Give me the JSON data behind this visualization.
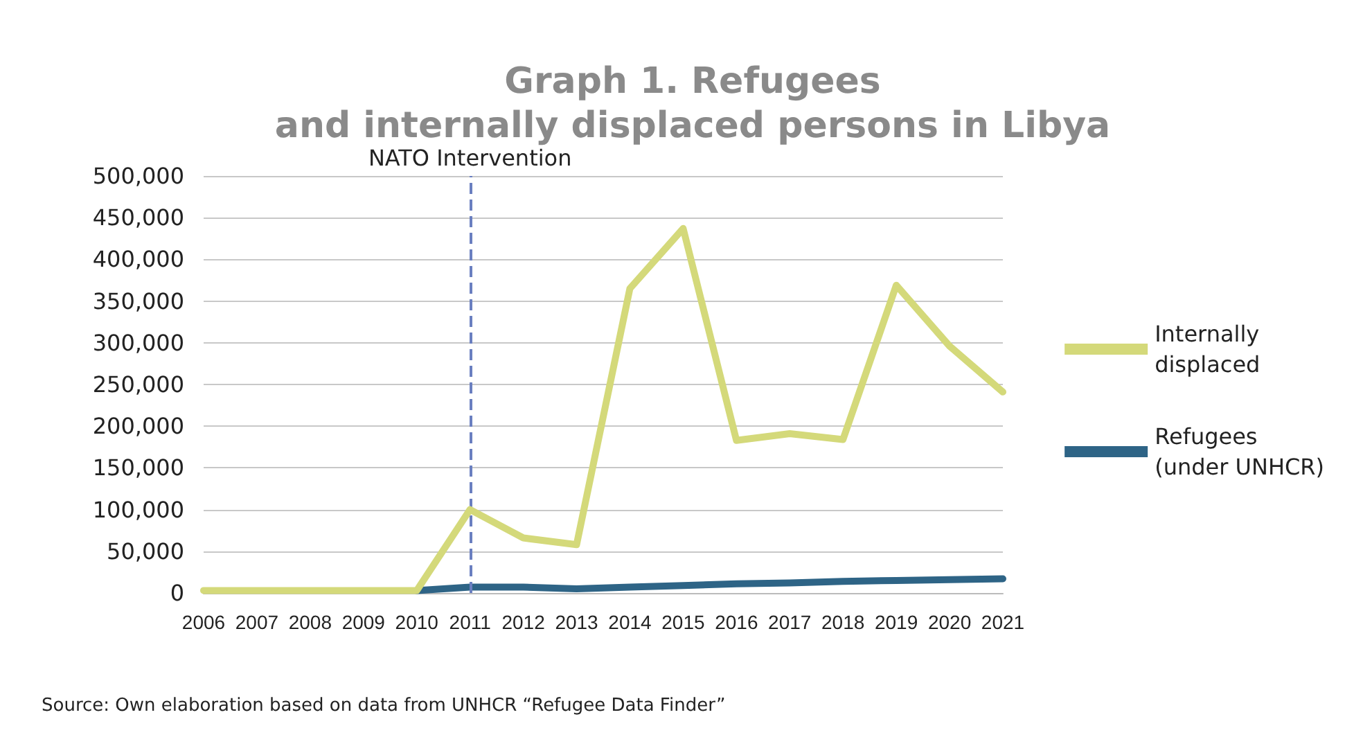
{
  "chart_data": {
    "type": "line",
    "title": "Graph 1. Refugees\nand internally displaced persons in Libya",
    "categories": [
      "2006",
      "2007",
      "2008",
      "2009",
      "2010",
      "2011",
      "2012",
      "2013",
      "2014",
      "2015",
      "2016",
      "2017",
      "2018",
      "2019",
      "2020",
      "2021"
    ],
    "series": [
      {
        "name": "Internally\ndisplaced",
        "color": "#d4d97a",
        "values": [
          3000,
          3000,
          3000,
          3000,
          3000,
          100000,
          66000,
          58000,
          365000,
          437000,
          183000,
          191000,
          184000,
          369000,
          296000,
          241000
        ]
      },
      {
        "name": "Refugees\n(under UNHCR)",
        "color": "#2e6486",
        "values": [
          null,
          null,
          null,
          null,
          3000,
          7000,
          7000,
          5000,
          7000,
          9000,
          11000,
          12000,
          14000,
          15000,
          16000,
          17000
        ]
      }
    ],
    "ylim": [
      0,
      500000
    ],
    "yticks": [
      0,
      {
        "value": 50000,
        "label": "50,000"
      },
      {
        "value": 100000,
        "label": "100,000"
      },
      {
        "value": 150000,
        "label": "150,000"
      },
      {
        "value": 200000,
        "label": "200,000"
      },
      {
        "value": 250000,
        "label": "250,000"
      },
      {
        "value": 300000,
        "label": "300,000"
      },
      {
        "value": 350000,
        "label": "350,000"
      },
      {
        "value": 400000,
        "label": "400,000"
      },
      {
        "value": 450000,
        "label": "450,000"
      },
      {
        "value": 500000,
        "label": "500,000"
      }
    ],
    "grid": "y",
    "legend": "right",
    "marker": "none",
    "line_style": "solid",
    "ref_lines": [
      {
        "axis": "x",
        "value": "2011",
        "label": "NATO Intervention",
        "color": "#6a7fc0",
        "line_style": "dashed"
      }
    ],
    "annotations": [
      "Source: Own elaboration based on data from UNHCR “Refugee Data Finder”"
    ]
  }
}
